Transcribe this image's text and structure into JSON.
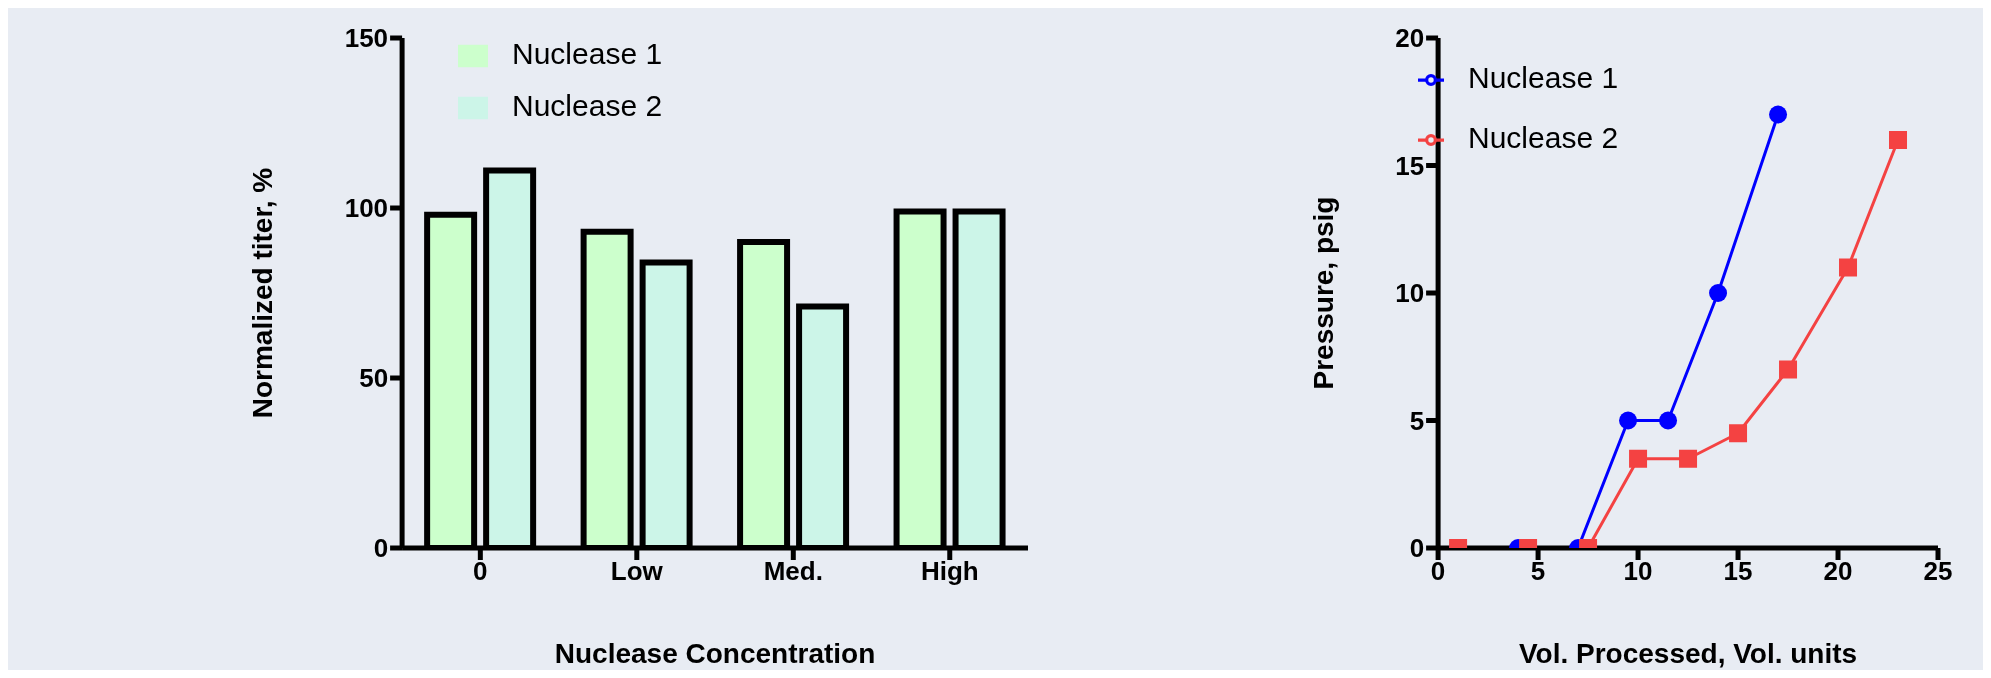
{
  "chart_data": [
    {
      "type": "bar",
      "xlabel": "Nuclease Concentration",
      "ylabel": "Normalized titer, %",
      "categories": [
        "0",
        "Low",
        "Med.",
        "High"
      ],
      "ylim": [
        0,
        150
      ],
      "yticks": [
        0,
        50,
        100,
        150
      ],
      "grid": false,
      "legend": "top left",
      "series": [
        {
          "name": "Nuclease 1",
          "color": "#ccffcc",
          "values": [
            98,
            93,
            90,
            99
          ]
        },
        {
          "name": "Nuclease 2",
          "color": "#ccf5e8",
          "values": [
            111,
            84,
            71,
            99
          ]
        }
      ]
    },
    {
      "type": "line",
      "xlabel": "Vol. Processed, Vol. units",
      "ylabel": "Pressure, psig",
      "xlim": [
        0,
        25
      ],
      "xticks": [
        0,
        5,
        10,
        15,
        20,
        25
      ],
      "ylim": [
        0,
        20
      ],
      "yticks": [
        0,
        5,
        10,
        15,
        20
      ],
      "grid": false,
      "legend": "top left",
      "series": [
        {
          "name": "Nuclease 1",
          "color": "#0000ff",
          "marker": "circle",
          "x": [
            1,
            4,
            7,
            9.5,
            11.5,
            14,
            17
          ],
          "values": [
            0,
            0,
            0,
            5,
            5,
            10,
            17
          ]
        },
        {
          "name": "Nuclease 2",
          "color": "#f44242",
          "marker": "square",
          "x": [
            1,
            4.5,
            7.5,
            10,
            12.5,
            15,
            17.5,
            20.5,
            23
          ],
          "values": [
            0,
            0,
            0,
            3.5,
            3.5,
            4.5,
            7,
            11,
            16
          ]
        }
      ]
    }
  ]
}
